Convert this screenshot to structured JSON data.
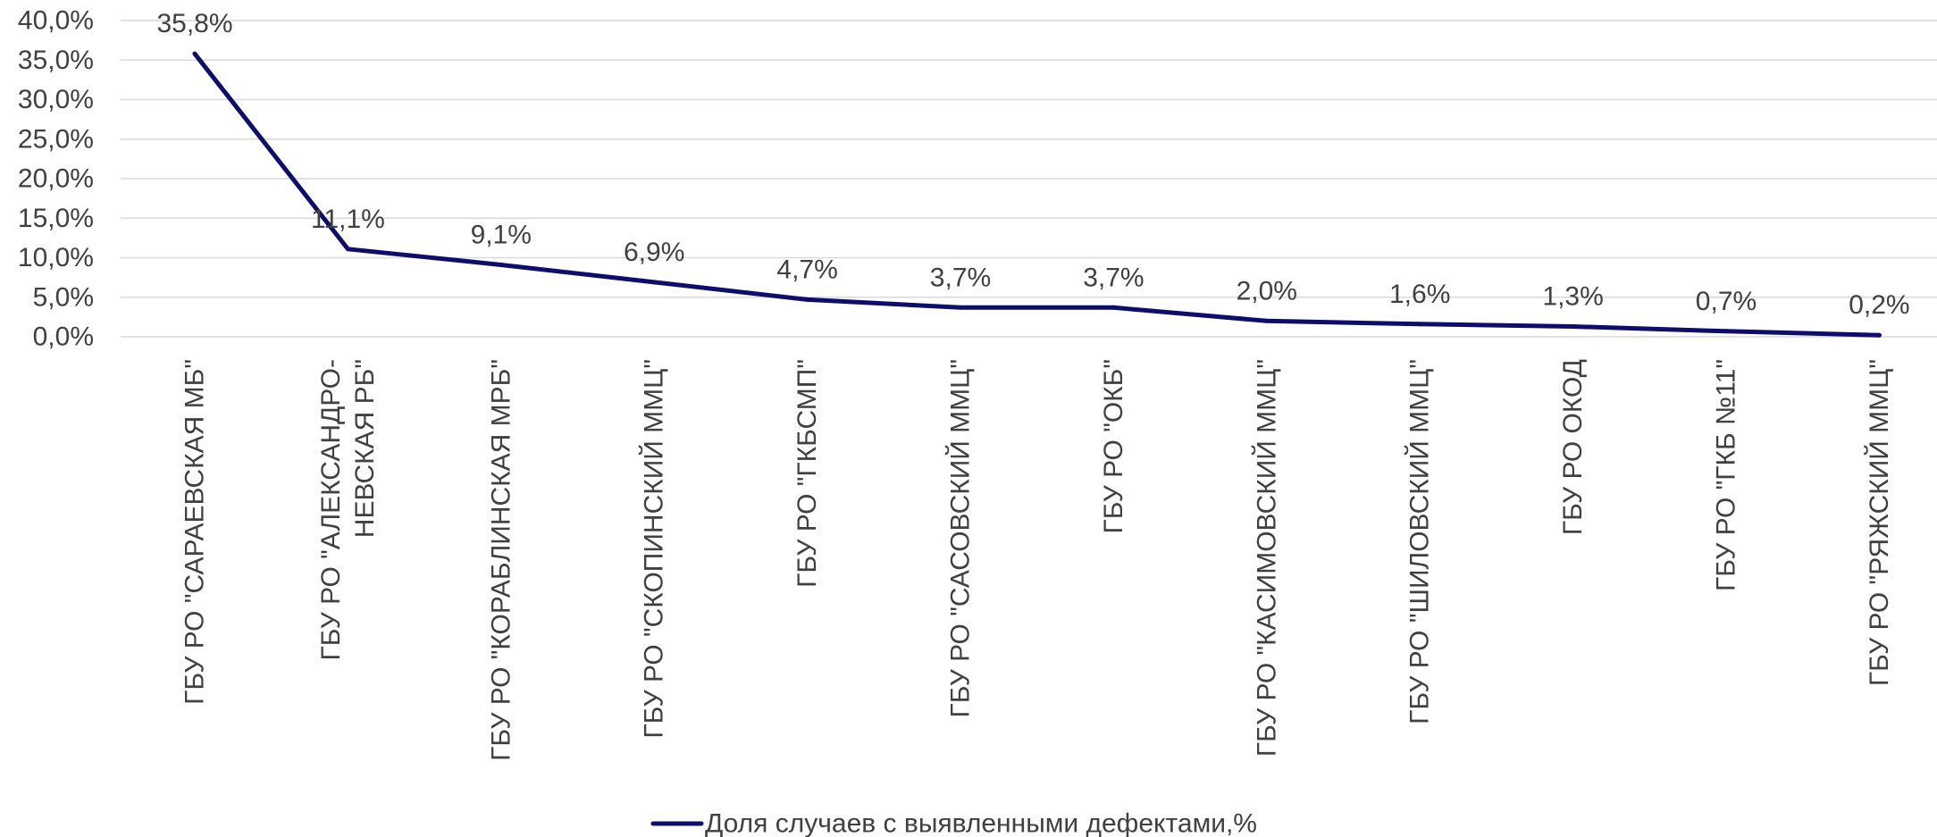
{
  "chart_data": {
    "type": "line",
    "categories": [
      [
        "ГБУ РО \"САРАЕВСКАЯ МБ\""
      ],
      [
        "ГБУ РО \"АЛЕКСАНДРО-",
        "НЕВСКАЯ РБ\""
      ],
      [
        "ГБУ РО \"КОРАБЛИНСКАЯ МРБ\""
      ],
      [
        "ГБУ РО \"СКОПИНСКИЙ ММЦ\""
      ],
      [
        "ГБУ РО \"ГКБСМП\""
      ],
      [
        "ГБУ РО \"САСОВСКИЙ ММЦ\""
      ],
      [
        "ГБУ РО \"ОКБ\""
      ],
      [
        "ГБУ РО \"КАСИМОВСКИЙ ММЦ\""
      ],
      [
        "ГБУ РО \"ШИЛОВСКИЙ ММЦ\""
      ],
      [
        "ГБУ РО ОКОД"
      ],
      [
        "ГБУ РО \"ГКБ №11\""
      ],
      [
        "ГБУ РО \"РЯЖСКИЙ ММЦ\""
      ]
    ],
    "series": [
      {
        "name": "Доля случаев с выявленными дефектами,%",
        "values": [
          35.8,
          11.1,
          9.1,
          6.9,
          4.7,
          3.7,
          3.7,
          2.0,
          1.6,
          1.3,
          0.7,
          0.2
        ],
        "labels": [
          "35,8%",
          "11,1%",
          "9,1%",
          "6,9%",
          "4,7%",
          "3,7%",
          "3,7%",
          "2,0%",
          "1,6%",
          "1,3%",
          "0,7%",
          "0,2%"
        ],
        "color": "#0d0d6b"
      }
    ],
    "ylim": [
      0,
      40
    ],
    "yticks": [
      0,
      5,
      10,
      15,
      20,
      25,
      30,
      35,
      40
    ],
    "ytick_labels": [
      "0,0%",
      "5,0%",
      "10,0%",
      "15,0%",
      "20,0%",
      "25,0%",
      "30,0%",
      "35,0%",
      "40,0%"
    ],
    "grid": true,
    "gridline_color": "#d9d9d9",
    "legend_position": "bottom"
  }
}
